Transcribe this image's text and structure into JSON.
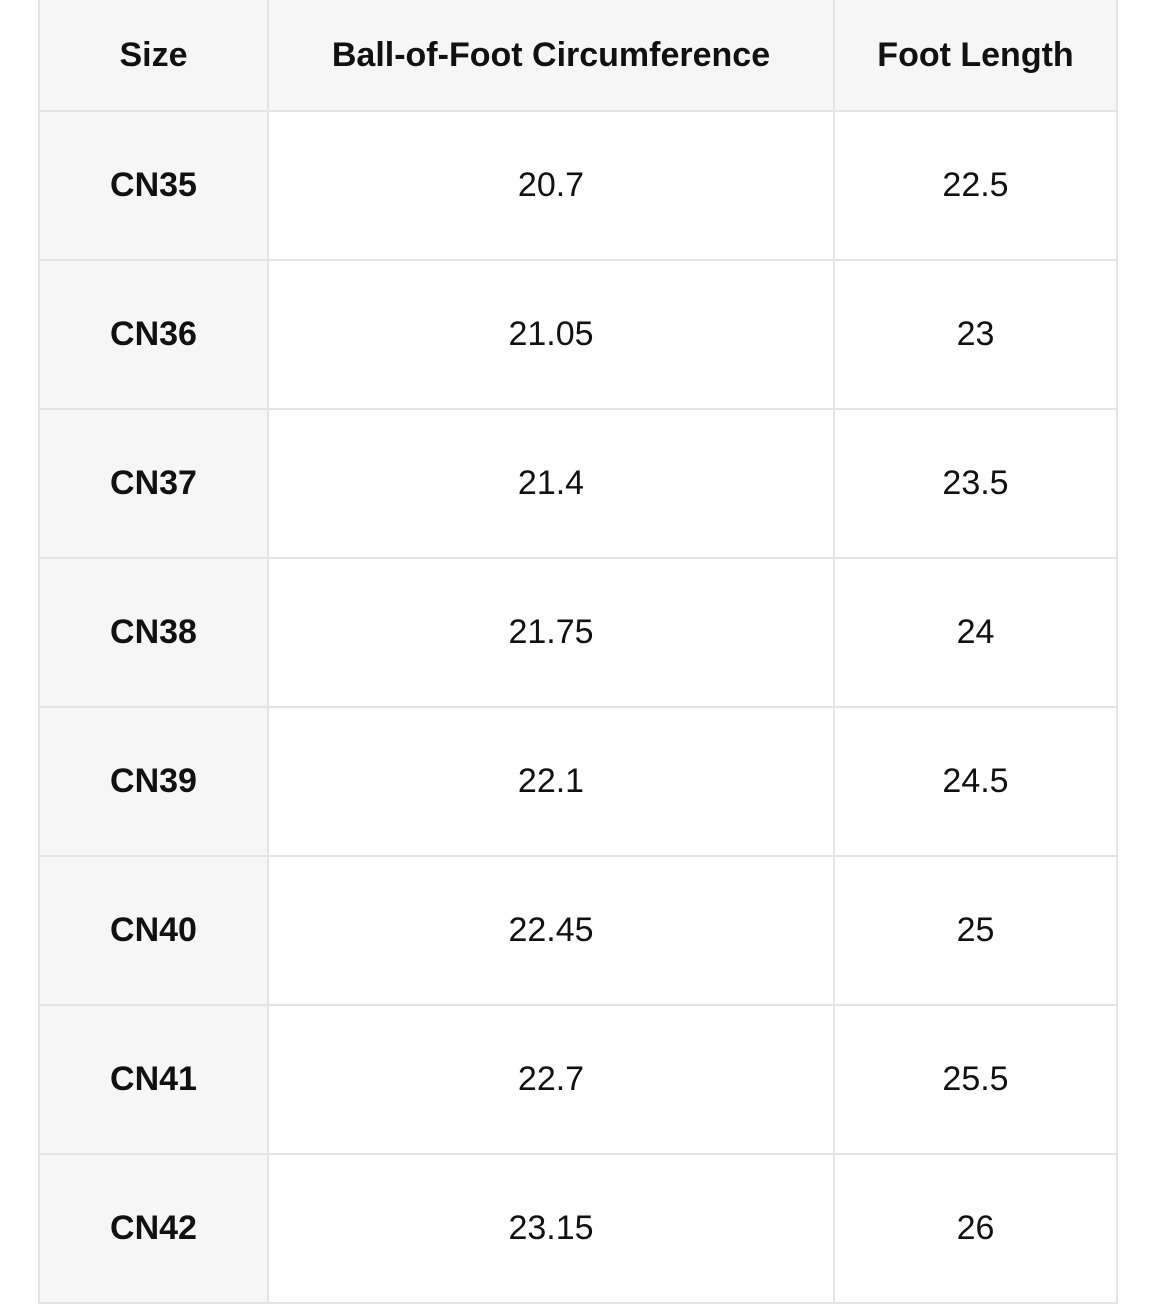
{
  "table": {
    "header": [
      "Size",
      "Ball-of-Foot Circumference",
      "Foot Length"
    ],
    "rows": [
      [
        "CN35",
        "20.7",
        "22.5"
      ],
      [
        "CN36",
        "21.05",
        "23"
      ],
      [
        "CN37",
        "21.4",
        "23.5"
      ],
      [
        "CN38",
        "21.75",
        "24"
      ],
      [
        "CN39",
        "22.1",
        "24.5"
      ],
      [
        "CN40",
        "22.45",
        "25"
      ],
      [
        "CN41",
        "22.7",
        "25.5"
      ],
      [
        "CN42",
        "23.15",
        "26"
      ]
    ]
  }
}
